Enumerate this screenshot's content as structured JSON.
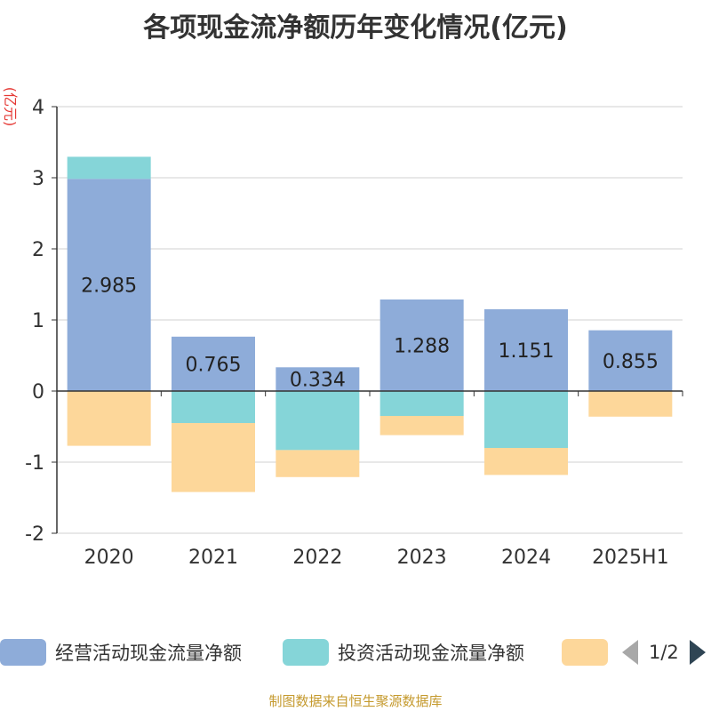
{
  "chart_data": {
    "type": "bar",
    "stacked": true,
    "title": "各项现金流净额历年变化情况(亿元)",
    "ylabel": "(亿元)",
    "ylim": [
      -2,
      4
    ],
    "yticks": [
      -2,
      -1,
      0,
      1,
      2,
      3,
      4
    ],
    "grid": true,
    "categories": [
      "2020",
      "2021",
      "2022",
      "2023",
      "2024",
      "2025H1"
    ],
    "series": [
      {
        "name": "经营活动现金流量净额",
        "color": "#8eacd9",
        "values": [
          2.985,
          0.765,
          0.334,
          1.288,
          1.151,
          0.855
        ],
        "labels": [
          "2.985",
          "0.765",
          "0.334",
          "1.288",
          "1.151",
          "0.855"
        ]
      },
      {
        "name": "投资活动现金流量净额",
        "color": "#85d5d8",
        "values": [
          0.31,
          -0.45,
          -0.83,
          -0.35,
          -0.8,
          0
        ]
      },
      {
        "name": "",
        "color": "#fdd79a",
        "values": [
          -0.77,
          -0.97,
          -0.38,
          -0.27,
          -0.38,
          -0.36
        ]
      }
    ],
    "legend_position": "bottom"
  },
  "legend": {
    "page": "1/2"
  },
  "source": "制图数据来自恒生聚源数据库"
}
